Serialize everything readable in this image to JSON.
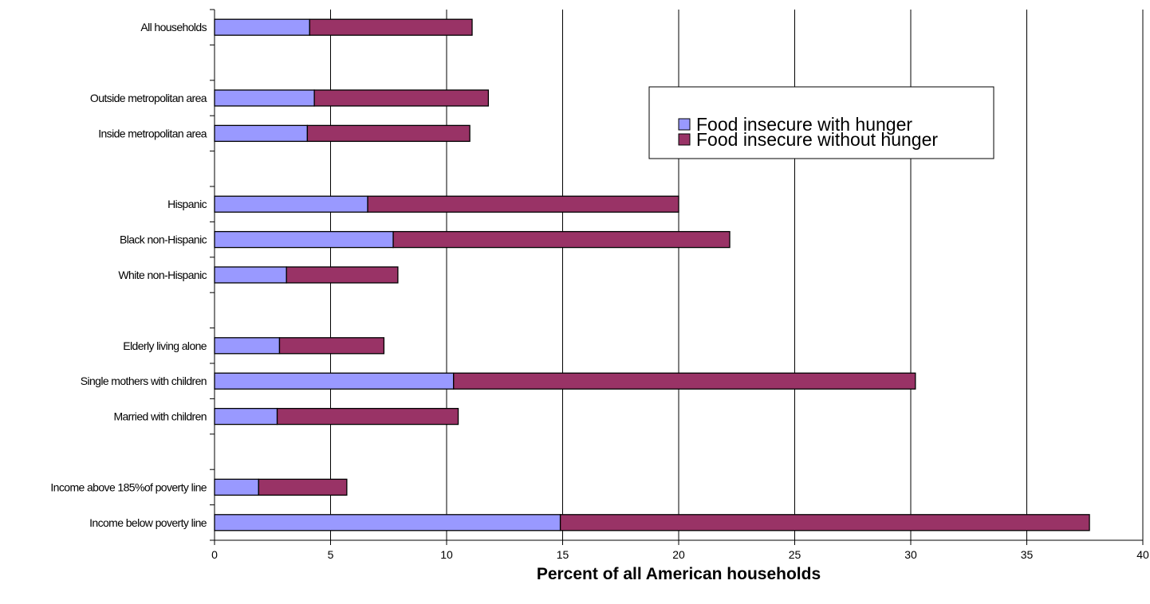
{
  "chart_data": {
    "type": "bar",
    "orientation": "horizontal",
    "stacked": true,
    "xlabel": "Percent of all American households",
    "xlim": [
      0,
      40
    ],
    "xticks": [
      0,
      5,
      10,
      15,
      20,
      25,
      30,
      35,
      40
    ],
    "grid": "vertical",
    "legend_position": "top-right",
    "categories": [
      "All households",
      "",
      "Outside metropolitan area",
      "Inside metropolitan area",
      "",
      "Hispanic",
      "Black non-Hispanic",
      "White non-Hispanic",
      "",
      "Elderly living alone",
      "Single mothers with children",
      "Married with children",
      "",
      "Income above 185%of poverty line",
      "Income below poverty line"
    ],
    "series": [
      {
        "name": "Food insecure with hunger",
        "color": "#9999ff",
        "values": [
          4.1,
          null,
          4.3,
          4.0,
          null,
          6.6,
          7.7,
          3.1,
          null,
          2.8,
          10.3,
          2.7,
          null,
          1.9,
          14.9
        ]
      },
      {
        "name": "Food insecure without hunger",
        "color": "#993366",
        "values": [
          7.0,
          null,
          7.5,
          7.0,
          null,
          13.4,
          14.5,
          4.8,
          null,
          4.5,
          19.9,
          7.8,
          null,
          3.8,
          22.8
        ]
      }
    ]
  }
}
